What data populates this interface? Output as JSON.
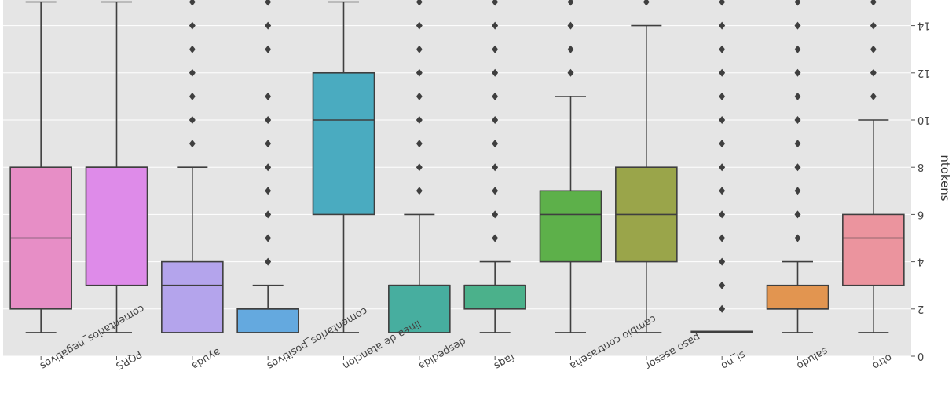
{
  "chart_data": {
    "type": "boxplot",
    "ylabel": "ntokens",
    "yticks": [
      0,
      2,
      4,
      6,
      8,
      10,
      12,
      14
    ],
    "ylim": [
      15,
      0
    ],
    "y_inverted": true,
    "grid": true,
    "categories": [
      {
        "label": "otro",
        "color": "#EB949E",
        "whisker_low": 1,
        "q1": 3,
        "median": 5,
        "q3": 6,
        "whisker_high": 10,
        "outliers": [
          11,
          12,
          13,
          14,
          15
        ]
      },
      {
        "label": "saludo",
        "color": "#E29550",
        "whisker_low": 1,
        "q1": 2,
        "median": 2,
        "q3": 3,
        "whisker_high": 4,
        "outliers": [
          5,
          6,
          7,
          8,
          9,
          10,
          11,
          12,
          13,
          14,
          15
        ]
      },
      {
        "label": "si_no",
        "color": "#C9A53D",
        "whisker_low": 1,
        "q1": 1,
        "median": 1,
        "q3": 1,
        "whisker_high": 1,
        "outliers": [
          2,
          3,
          4,
          5,
          6,
          7,
          8,
          9,
          10,
          11,
          12,
          13,
          14,
          15
        ]
      },
      {
        "label": "paso asesor",
        "color": "#9AA54A",
        "whisker_low": 1,
        "q1": 4,
        "median": 6,
        "q3": 8,
        "whisker_high": 14,
        "outliers": [
          15
        ]
      },
      {
        "label": "cambio contraseña",
        "color": "#5DB04A",
        "whisker_low": 1,
        "q1": 4,
        "median": 6,
        "q3": 7,
        "whisker_high": 11,
        "outliers": [
          12,
          13,
          14,
          15
        ]
      },
      {
        "label": "faqs",
        "color": "#4BB18B",
        "whisker_low": 1,
        "q1": 2,
        "median": 3,
        "q3": 3,
        "whisker_high": 4,
        "outliers": [
          5,
          6,
          7,
          8,
          9,
          10,
          11,
          12,
          13,
          14,
          15
        ]
      },
      {
        "label": "despedida",
        "color": "#47AE9F",
        "whisker_low": 1,
        "q1": 1,
        "median": 3,
        "q3": 3,
        "whisker_high": 6,
        "outliers": [
          7,
          8,
          9,
          10,
          11,
          12,
          13,
          14,
          15
        ]
      },
      {
        "label": "linea de atencion",
        "color": "#4AABC0",
        "whisker_low": 1,
        "q1": 6,
        "median": 10,
        "q3": 12,
        "whisker_high": 15,
        "outliers": []
      },
      {
        "label": "comentarios_positivos",
        "color": "#64A9DF",
        "whisker_low": 1,
        "q1": 1,
        "median": 2,
        "q3": 2,
        "whisker_high": 3,
        "outliers": [
          4,
          5,
          6,
          7,
          8,
          9,
          10,
          11,
          13,
          14,
          15
        ]
      },
      {
        "label": "ayuda",
        "color": "#B4A4EC",
        "whisker_low": 1,
        "q1": 1,
        "median": 3,
        "q3": 4,
        "whisker_high": 8,
        "outliers": [
          9,
          10,
          11,
          12,
          13,
          14,
          15
        ]
      },
      {
        "label": "PQRS",
        "color": "#DE8BE9",
        "whisker_low": 1,
        "q1": 3,
        "median": 8,
        "q3": 8,
        "whisker_high": 15,
        "outliers": []
      },
      {
        "label": "comentarios_negativos",
        "color": "#E78EC6",
        "whisker_low": 1,
        "q1": 2,
        "median": 5,
        "q3": 8,
        "whisker_high": 15,
        "outliers": []
      }
    ]
  }
}
